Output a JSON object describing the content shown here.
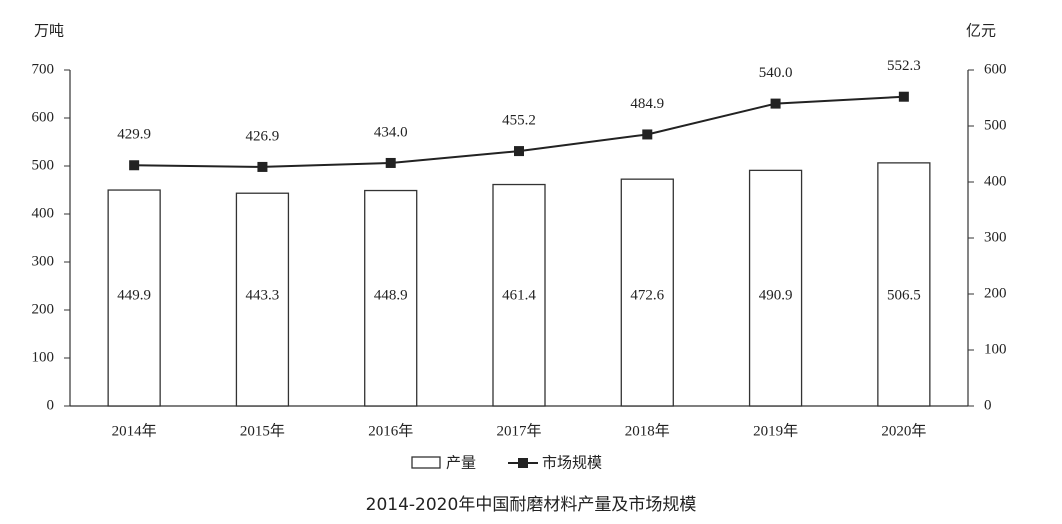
{
  "chart_data": {
    "type": "bar",
    "title": "2014-2020年中国耐磨材料产量及市场规模",
    "y_label": "万吨",
    "y2_label": "亿元",
    "categories": [
      "2014年",
      "2015年",
      "2016年",
      "2017年",
      "2018年",
      "2019年",
      "2020年"
    ],
    "series": [
      {
        "name": "产量",
        "type": "bar",
        "color": "#333333",
        "values": [
          449.9,
          443.3,
          448.9,
          461.4,
          472.6,
          490.9,
          506.5
        ]
      },
      {
        "name": "市场规模",
        "type": "line",
        "axis": "y2",
        "color": "#222222",
        "values": [
          429.9,
          426.9,
          434.0,
          455.2,
          484.9,
          540.0,
          552.3
        ],
        "value_labels": [
          "429.9",
          "426.9",
          "434.0",
          "455.2",
          "484.9",
          "540.0",
          "552.3"
        ]
      }
    ],
    "ylim": [
      0,
      700
    ],
    "yticks": [
      0,
      100,
      200,
      300,
      400,
      500,
      600,
      700
    ],
    "y2lim": [
      0,
      600
    ],
    "y2ticks": [
      0,
      100,
      200,
      300,
      400,
      500,
      600
    ],
    "grid": false,
    "legend": "bottom"
  }
}
